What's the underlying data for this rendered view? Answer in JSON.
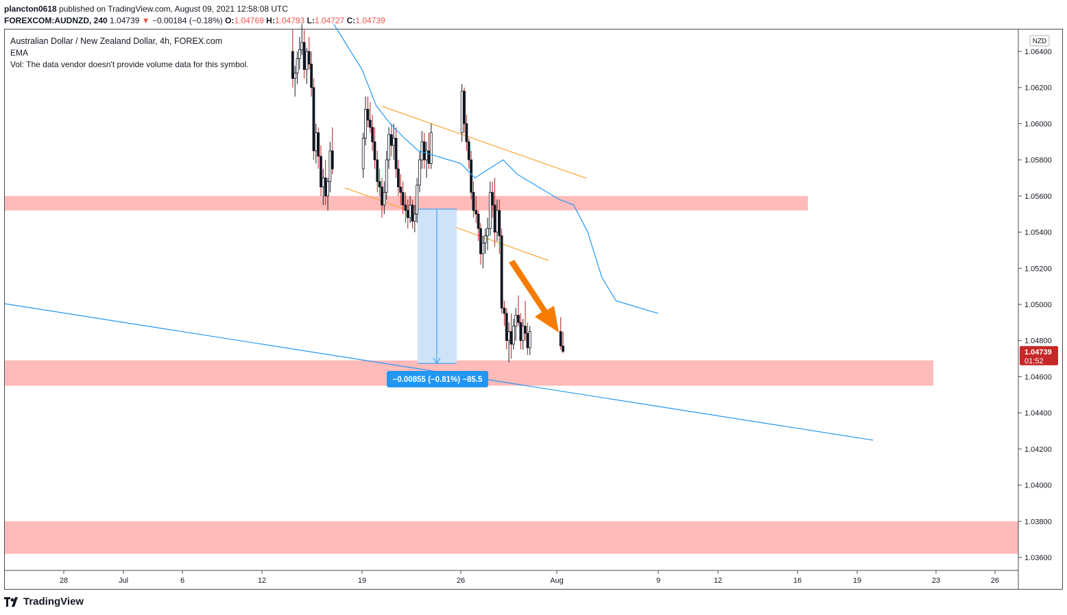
{
  "header": {
    "author": "plancton0618",
    "published_text": "published on TradingView.com, August 09, 2021 12:58:08 UTC"
  },
  "ohlc": {
    "symbol": "FOREXCOM:AUDNZD, 240",
    "last": "1.04739",
    "change_arrow": "▼",
    "change": "−0.00184 (−0.18%)",
    "o_label": "O:",
    "o": "1.04769",
    "h_label": "H:",
    "h": "1.04793",
    "l_label": "L:",
    "l": "1.04727",
    "c_label": "C:",
    "c": "1.04739"
  },
  "legend": {
    "title": "Australian Dollar / New Zealand Dollar, 4h, FOREX.com",
    "indicator": "EMA",
    "volume_note": "Vol: The data vendor doesn't provide volume data for this symbol."
  },
  "price_axis": {
    "currency": "NZD",
    "labels": [
      "1.06400",
      "1.06200",
      "1.06000",
      "1.05800",
      "1.05600",
      "1.05400",
      "1.05200",
      "1.05000",
      "1.04800",
      "1.04600",
      "1.04400",
      "1.04200",
      "1.04000",
      "1.03800",
      "1.03600"
    ],
    "current_price": "1.04739",
    "countdown": "01:52"
  },
  "time_axis": {
    "labels": [
      "28",
      "Jul",
      "6",
      "12",
      "19",
      "26",
      "Aug",
      "9",
      "12",
      "16",
      "19",
      "23",
      "26"
    ]
  },
  "measure_label": "−0.00855 (−0.81%) −85.5",
  "brand": "TradingView",
  "colors": {
    "up": "#131722",
    "down": "#131722",
    "wick_down": "#b71c1c",
    "ema": "#2196f3",
    "zone": "#ffb3b3",
    "channel": "#f7a531",
    "arrow": "#f57c00",
    "measure_fill": "#cfe3f7",
    "measure_label_bg": "#2196f3",
    "price_tag": "#c62828"
  },
  "chart_data": {
    "type": "candlestick",
    "symbol": "FOREXCOM:AUDNZD",
    "timeframe": "4h",
    "ylim": [
      1.0355,
      1.065
    ],
    "y_ticks": [
      1.064,
      1.062,
      1.06,
      1.058,
      1.056,
      1.054,
      1.052,
      1.05,
      1.048,
      1.046,
      1.044,
      1.042,
      1.04,
      1.038,
      1.036
    ],
    "candles_start_date": "2021-07-14",
    "candles": [
      [
        1.064,
        1.0652,
        1.062,
        1.0625
      ],
      [
        1.0625,
        1.0632,
        1.0615,
        1.0628
      ],
      [
        1.0628,
        1.064,
        1.0622,
        1.0636
      ],
      [
        1.0636,
        1.0648,
        1.063,
        1.0641
      ],
      [
        1.0641,
        1.0655,
        1.0638,
        1.0645
      ],
      [
        1.0645,
        1.0652,
        1.0625,
        1.063
      ],
      [
        1.063,
        1.0642,
        1.0622,
        1.064
      ],
      [
        1.064,
        1.0648,
        1.063,
        1.0633
      ],
      [
        1.0633,
        1.064,
        1.0615,
        1.062
      ],
      [
        1.062,
        1.0625,
        1.058,
        1.0585
      ],
      [
        1.0585,
        1.06,
        1.0578,
        1.0595
      ],
      [
        1.0595,
        1.0598,
        1.0575,
        1.0582
      ],
      [
        1.0582,
        1.0588,
        1.056,
        1.0565
      ],
      [
        1.0565,
        1.0575,
        1.0555,
        1.057
      ],
      [
        1.057,
        1.058,
        1.0555,
        1.056
      ],
      [
        1.056,
        1.057,
        1.0552,
        1.0568
      ],
      [
        1.0568,
        1.059,
        1.0562,
        1.0585
      ],
      [
        1.0585,
        1.0598,
        1.0572,
        1.0575
      ],
      [
        1.0575,
        1.0595,
        1.057,
        1.0592
      ],
      [
        1.0592,
        1.0615,
        1.0588,
        1.0608
      ],
      [
        1.0608,
        1.0615,
        1.0598,
        1.0602
      ],
      [
        1.0602,
        1.0612,
        1.0595,
        1.0598
      ],
      [
        1.0598,
        1.0605,
        1.0585,
        1.059
      ],
      [
        1.059,
        1.0598,
        1.0575,
        1.058
      ],
      [
        1.058,
        1.0585,
        1.0562,
        1.0568
      ],
      [
        1.0568,
        1.0575,
        1.056,
        1.0565
      ],
      [
        1.0565,
        1.057,
        1.0548,
        1.0555
      ],
      [
        1.0555,
        1.0568,
        1.055,
        1.0562
      ],
      [
        1.0562,
        1.0585,
        1.0558,
        1.058
      ],
      [
        1.058,
        1.0598,
        1.0575,
        1.0594
      ],
      [
        1.0594,
        1.06,
        1.0582,
        1.0588
      ],
      [
        1.0588,
        1.06,
        1.058,
        1.0592
      ],
      [
        1.0592,
        1.0598,
        1.057,
        1.0575
      ],
      [
        1.0575,
        1.058,
        1.056,
        1.0565
      ],
      [
        1.0565,
        1.0572,
        1.0555,
        1.0562
      ],
      [
        1.0562,
        1.0568,
        1.055,
        1.0555
      ],
      [
        1.0555,
        1.0562,
        1.0545,
        1.0552
      ],
      [
        1.0552,
        1.0558,
        1.0542,
        1.0548
      ],
      [
        1.0548,
        1.056,
        1.0545,
        1.0555
      ],
      [
        1.0555,
        1.0558,
        1.0542,
        1.0546
      ],
      [
        1.0546,
        1.0555,
        1.054,
        1.055
      ],
      [
        1.055,
        1.057,
        1.0545,
        1.0566
      ],
      [
        1.0566,
        1.0585,
        1.0562,
        1.058
      ],
      [
        1.058,
        1.0596,
        1.0575,
        1.059
      ],
      [
        1.059,
        1.0595,
        1.0575,
        1.058
      ],
      [
        1.058,
        1.059,
        1.057,
        1.0585
      ],
      [
        1.0585,
        1.0595,
        1.0575,
        1.0578
      ],
      [
        1.0578,
        1.06,
        1.0575,
        1.0595
      ],
      [
        1.0595,
        1.0622,
        1.059,
        1.0618
      ],
      [
        1.0618,
        1.062,
        1.0595,
        1.06
      ],
      [
        1.06,
        1.0605,
        1.0585,
        1.059
      ],
      [
        1.059,
        1.0592,
        1.0575,
        1.058
      ],
      [
        1.058,
        1.0585,
        1.0558,
        1.0562
      ],
      [
        1.0562,
        1.0568,
        1.0548,
        1.0552
      ],
      [
        1.0552,
        1.056,
        1.0545,
        1.055
      ],
      [
        1.055,
        1.0552,
        1.0535,
        1.0542
      ],
      [
        1.0542,
        1.0545,
        1.0522,
        1.0528
      ],
      [
        1.0528,
        1.0538,
        1.052,
        1.0534
      ],
      [
        1.0534,
        1.0542,
        1.0528,
        1.0538
      ],
      [
        1.0538,
        1.0548,
        1.053,
        1.0542
      ],
      [
        1.0542,
        1.0568,
        1.0538,
        1.0562
      ],
      [
        1.0562,
        1.0568,
        1.0548,
        1.0555
      ],
      [
        1.0555,
        1.057,
        1.0532,
        1.054
      ],
      [
        1.054,
        1.0558,
        1.0535,
        1.0552
      ],
      [
        1.0552,
        1.0558,
        1.0528,
        1.0538
      ],
      [
        1.0538,
        1.0542,
        1.0495,
        1.0498
      ],
      [
        1.0498,
        1.0502,
        1.0488,
        1.0495
      ],
      [
        1.0495,
        1.0498,
        1.0475,
        1.048
      ],
      [
        1.048,
        1.049,
        1.0468,
        1.0485
      ],
      [
        1.0485,
        1.0495,
        1.047,
        1.0478
      ],
      [
        1.0478,
        1.0492,
        1.0475,
        1.0488
      ],
      [
        1.0488,
        1.0498,
        1.048,
        1.0494
      ],
      [
        1.0494,
        1.0505,
        1.0488,
        1.049
      ],
      [
        1.049,
        1.0495,
        1.0475,
        1.048
      ],
      [
        1.048,
        1.0492,
        1.0475,
        1.0488
      ],
      [
        1.0488,
        1.0502,
        1.048,
        1.0484
      ],
      [
        1.0484,
        1.049,
        1.0472,
        1.0476
      ],
      [
        1.0476,
        1.0488,
        1.0472,
        1.0485
      ],
      [
        1.0485,
        1.0493,
        1.0475,
        1.0477
      ],
      [
        1.0477,
        1.0485,
        1.0473,
        1.0474
      ]
    ],
    "ema": [
      [
        1.0655,
        "2021-07-17"
      ],
      [
        1.063,
        "2021-07-19"
      ],
      [
        1.061,
        "2021-07-20"
      ],
      [
        1.06,
        "2021-07-21"
      ],
      [
        1.0592,
        "2021-07-22"
      ],
      [
        1.0585,
        "2021-07-23"
      ],
      [
        1.0578,
        "2021-07-26"
      ],
      [
        1.057,
        "2021-07-27"
      ],
      [
        1.0575,
        "2021-07-28"
      ],
      [
        1.058,
        "2021-07-29"
      ],
      [
        1.0572,
        "2021-07-30"
      ],
      [
        1.0558,
        "2021-08-02"
      ],
      [
        1.0555,
        "2021-08-03"
      ],
      [
        1.054,
        "2021-08-04"
      ],
      [
        1.0515,
        "2021-08-05"
      ],
      [
        1.0502,
        "2021-08-06"
      ],
      [
        1.0495,
        "2021-08-09"
      ]
    ],
    "zones": [
      {
        "from": 1.0552,
        "to": 1.056
      },
      {
        "from": 1.0455,
        "to": 1.0469
      },
      {
        "from": 1.0362,
        "to": 1.038
      }
    ],
    "measure": {
      "change": -0.00855,
      "percent": -0.81,
      "pips": -85.5
    }
  }
}
